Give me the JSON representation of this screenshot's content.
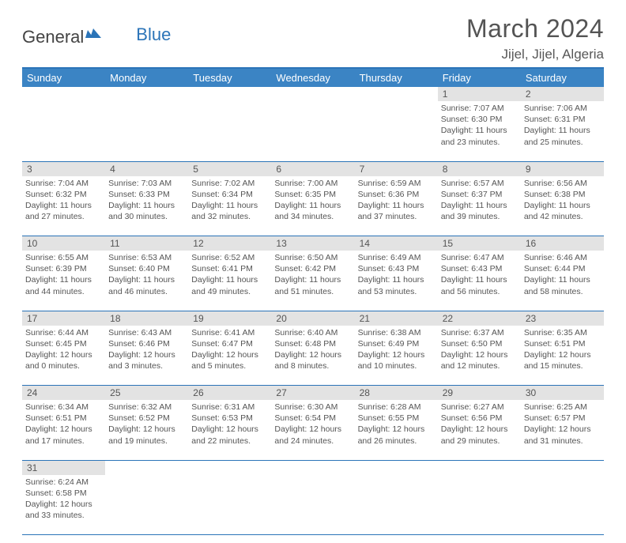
{
  "brand": {
    "part1": "General",
    "part2": "Blue"
  },
  "title": "March 2024",
  "location": "Jijel, Jijel, Algeria",
  "colors": {
    "header_bg": "#3b84c4",
    "header_border": "#2b74b8",
    "daynum_bg": "#e3e3e3",
    "text": "#555555",
    "title_text": "#545454"
  },
  "dayHeaders": [
    "Sunday",
    "Monday",
    "Tuesday",
    "Wednesday",
    "Thursday",
    "Friday",
    "Saturday"
  ],
  "weeks": [
    [
      null,
      null,
      null,
      null,
      null,
      {
        "n": "1",
        "sunrise": "7:07 AM",
        "sunset": "6:30 PM",
        "dl1": "Daylight: 11 hours",
        "dl2": "and 23 minutes."
      },
      {
        "n": "2",
        "sunrise": "7:06 AM",
        "sunset": "6:31 PM",
        "dl1": "Daylight: 11 hours",
        "dl2": "and 25 minutes."
      }
    ],
    [
      {
        "n": "3",
        "sunrise": "7:04 AM",
        "sunset": "6:32 PM",
        "dl1": "Daylight: 11 hours",
        "dl2": "and 27 minutes."
      },
      {
        "n": "4",
        "sunrise": "7:03 AM",
        "sunset": "6:33 PM",
        "dl1": "Daylight: 11 hours",
        "dl2": "and 30 minutes."
      },
      {
        "n": "5",
        "sunrise": "7:02 AM",
        "sunset": "6:34 PM",
        "dl1": "Daylight: 11 hours",
        "dl2": "and 32 minutes."
      },
      {
        "n": "6",
        "sunrise": "7:00 AM",
        "sunset": "6:35 PM",
        "dl1": "Daylight: 11 hours",
        "dl2": "and 34 minutes."
      },
      {
        "n": "7",
        "sunrise": "6:59 AM",
        "sunset": "6:36 PM",
        "dl1": "Daylight: 11 hours",
        "dl2": "and 37 minutes."
      },
      {
        "n": "8",
        "sunrise": "6:57 AM",
        "sunset": "6:37 PM",
        "dl1": "Daylight: 11 hours",
        "dl2": "and 39 minutes."
      },
      {
        "n": "9",
        "sunrise": "6:56 AM",
        "sunset": "6:38 PM",
        "dl1": "Daylight: 11 hours",
        "dl2": "and 42 minutes."
      }
    ],
    [
      {
        "n": "10",
        "sunrise": "6:55 AM",
        "sunset": "6:39 PM",
        "dl1": "Daylight: 11 hours",
        "dl2": "and 44 minutes."
      },
      {
        "n": "11",
        "sunrise": "6:53 AM",
        "sunset": "6:40 PM",
        "dl1": "Daylight: 11 hours",
        "dl2": "and 46 minutes."
      },
      {
        "n": "12",
        "sunrise": "6:52 AM",
        "sunset": "6:41 PM",
        "dl1": "Daylight: 11 hours",
        "dl2": "and 49 minutes."
      },
      {
        "n": "13",
        "sunrise": "6:50 AM",
        "sunset": "6:42 PM",
        "dl1": "Daylight: 11 hours",
        "dl2": "and 51 minutes."
      },
      {
        "n": "14",
        "sunrise": "6:49 AM",
        "sunset": "6:43 PM",
        "dl1": "Daylight: 11 hours",
        "dl2": "and 53 minutes."
      },
      {
        "n": "15",
        "sunrise": "6:47 AM",
        "sunset": "6:43 PM",
        "dl1": "Daylight: 11 hours",
        "dl2": "and 56 minutes."
      },
      {
        "n": "16",
        "sunrise": "6:46 AM",
        "sunset": "6:44 PM",
        "dl1": "Daylight: 11 hours",
        "dl2": "and 58 minutes."
      }
    ],
    [
      {
        "n": "17",
        "sunrise": "6:44 AM",
        "sunset": "6:45 PM",
        "dl1": "Daylight: 12 hours",
        "dl2": "and 0 minutes."
      },
      {
        "n": "18",
        "sunrise": "6:43 AM",
        "sunset": "6:46 PM",
        "dl1": "Daylight: 12 hours",
        "dl2": "and 3 minutes."
      },
      {
        "n": "19",
        "sunrise": "6:41 AM",
        "sunset": "6:47 PM",
        "dl1": "Daylight: 12 hours",
        "dl2": "and 5 minutes."
      },
      {
        "n": "20",
        "sunrise": "6:40 AM",
        "sunset": "6:48 PM",
        "dl1": "Daylight: 12 hours",
        "dl2": "and 8 minutes."
      },
      {
        "n": "21",
        "sunrise": "6:38 AM",
        "sunset": "6:49 PM",
        "dl1": "Daylight: 12 hours",
        "dl2": "and 10 minutes."
      },
      {
        "n": "22",
        "sunrise": "6:37 AM",
        "sunset": "6:50 PM",
        "dl1": "Daylight: 12 hours",
        "dl2": "and 12 minutes."
      },
      {
        "n": "23",
        "sunrise": "6:35 AM",
        "sunset": "6:51 PM",
        "dl1": "Daylight: 12 hours",
        "dl2": "and 15 minutes."
      }
    ],
    [
      {
        "n": "24",
        "sunrise": "6:34 AM",
        "sunset": "6:51 PM",
        "dl1": "Daylight: 12 hours",
        "dl2": "and 17 minutes."
      },
      {
        "n": "25",
        "sunrise": "6:32 AM",
        "sunset": "6:52 PM",
        "dl1": "Daylight: 12 hours",
        "dl2": "and 19 minutes."
      },
      {
        "n": "26",
        "sunrise": "6:31 AM",
        "sunset": "6:53 PM",
        "dl1": "Daylight: 12 hours",
        "dl2": "and 22 minutes."
      },
      {
        "n": "27",
        "sunrise": "6:30 AM",
        "sunset": "6:54 PM",
        "dl1": "Daylight: 12 hours",
        "dl2": "and 24 minutes."
      },
      {
        "n": "28",
        "sunrise": "6:28 AM",
        "sunset": "6:55 PM",
        "dl1": "Daylight: 12 hours",
        "dl2": "and 26 minutes."
      },
      {
        "n": "29",
        "sunrise": "6:27 AM",
        "sunset": "6:56 PM",
        "dl1": "Daylight: 12 hours",
        "dl2": "and 29 minutes."
      },
      {
        "n": "30",
        "sunrise": "6:25 AM",
        "sunset": "6:57 PM",
        "dl1": "Daylight: 12 hours",
        "dl2": "and 31 minutes."
      }
    ],
    [
      {
        "n": "31",
        "sunrise": "6:24 AM",
        "sunset": "6:58 PM",
        "dl1": "Daylight: 12 hours",
        "dl2": "and 33 minutes."
      },
      null,
      null,
      null,
      null,
      null,
      null
    ]
  ]
}
